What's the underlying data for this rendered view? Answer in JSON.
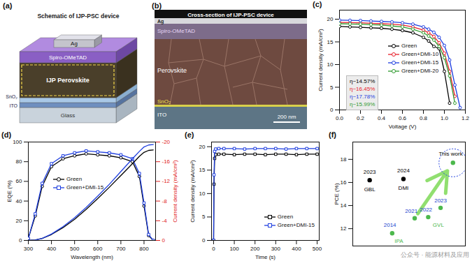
{
  "schematic": {
    "title": "(a)",
    "subtitle": "Schematic of IJP-PSC device",
    "layers": [
      "Ag",
      "Spiro-OMeTAD",
      "IJP Perovskite",
      "SnO₂",
      "ITO",
      "Glass"
    ]
  },
  "micrograph": {
    "title": "(b)",
    "subtitle": "Cross-section of IJP-PSC device",
    "layers": [
      "Ag",
      "Spiro-OMeTAD",
      "Perovskite",
      "SnO₂",
      "ITO"
    ],
    "scale_bar": "200 nm"
  },
  "chart_data": [
    {
      "type": "line",
      "title": "(c)",
      "xlabel": "Voltage (V)",
      "ylabel": "Current density (mA/cm²)",
      "x": [
        0,
        0.1,
        0.2,
        0.3,
        0.4,
        0.5,
        0.6,
        0.7,
        0.8,
        0.85,
        0.9,
        0.95,
        1.0,
        1.05,
        1.1,
        1.15
      ],
      "series": [
        {
          "name": "Green",
          "color": "#000000",
          "marker": "circle",
          "values": [
            18.4,
            18.3,
            18.2,
            18.1,
            18.0,
            17.8,
            17.5,
            17.0,
            16.0,
            15.2,
            14.0,
            13.5,
            8.5,
            1.5,
            null,
            null
          ]
        },
        {
          "name": "Green+DMI-10",
          "color": "#e8202a",
          "marker": "circle",
          "values": [
            19.3,
            19.25,
            19.2,
            19.1,
            19.0,
            18.9,
            18.7,
            18.3,
            17.6,
            17.0,
            16.2,
            14.8,
            12.5,
            8.5,
            3.0,
            null
          ]
        },
        {
          "name": "Green+DMI-15",
          "color": "#1f3fe0",
          "marker": "circle",
          "values": [
            19.8,
            19.75,
            19.7,
            19.6,
            19.5,
            19.4,
            19.2,
            18.9,
            18.3,
            17.8,
            17.1,
            16.0,
            14.2,
            11.0,
            5.5,
            0.5
          ]
        },
        {
          "name": "Green+DMI-20",
          "color": "#2e9a2e",
          "marker": "circle",
          "values": [
            19.0,
            18.95,
            18.9,
            18.8,
            18.7,
            18.5,
            18.3,
            17.8,
            17.0,
            16.3,
            15.4,
            14.0,
            11.5,
            7.5,
            1.5,
            null
          ]
        }
      ],
      "xlim": [
        0,
        1.2
      ],
      "xticks": [
        {
          "value": 0,
          "label": "0.0"
        },
        0.2,
        0.4,
        0.6,
        0.8,
        {
          "value": 1,
          "label": "1.0"
        },
        1.2
      ],
      "ylim": [
        0,
        22
      ],
      "yticks": [
        0,
        5,
        10,
        15,
        20
      ],
      "legend": "right",
      "annotations": [
        {
          "text": "η~14.57%",
          "color": "#000000"
        },
        {
          "text": "η~16.45%",
          "color": "#e8202a"
        },
        {
          "text": "η~17.78%",
          "color": "#1f3fe0"
        },
        {
          "text": "η~15.99%",
          "color": "#2e9a2e"
        }
      ]
    },
    {
      "type": "line",
      "title": "(d)",
      "xlabel": "Wavelength (nm)",
      "ylabel": "EQE (%)",
      "y2label": "Current density (mA/cm²)",
      "x": [
        300,
        330,
        360,
        400,
        450,
        500,
        550,
        600,
        650,
        700,
        750,
        780,
        800,
        820,
        840
      ],
      "series": [
        {
          "name": "Green",
          "color": "#000000",
          "marker": "circle",
          "values": [
            2,
            25,
            55,
            75,
            83,
            86,
            88,
            87,
            86,
            84,
            80,
            65,
            35,
            5,
            0
          ]
        },
        {
          "name": "Green+DMI-15",
          "color": "#1f3fe0",
          "marker": "square",
          "values": [
            2,
            27,
            58,
            78,
            86,
            89,
            91,
            90,
            89,
            87,
            83,
            68,
            38,
            6,
            0
          ]
        },
        {
          "name": "Green",
          "color": "#000000",
          "axis": "y2",
          "values": [
            0,
            -0.1,
            -0.4,
            -1.2,
            -2.6,
            -4.3,
            -6.3,
            -8.5,
            -10.8,
            -13.2,
            -15.6,
            -17.1,
            -17.9,
            -18.3,
            -18.4
          ]
        },
        {
          "name": "Green+DMI-15",
          "color": "#1f3fe0",
          "axis": "y2",
          "values": [
            0,
            -0.1,
            -0.4,
            -1.3,
            -2.8,
            -4.6,
            -6.7,
            -9.0,
            -11.4,
            -14.0,
            -16.6,
            -18.1,
            -19.0,
            -19.4,
            -19.5
          ]
        }
      ],
      "xlim": [
        300,
        850
      ],
      "xticks": [
        300,
        400,
        500,
        600,
        700,
        800
      ],
      "ylim": [
        0,
        100
      ],
      "yticks": [
        0,
        20,
        40,
        60,
        80,
        100
      ],
      "y2lim": [
        0,
        -20
      ],
      "y2ticks": [
        0,
        -4,
        -8,
        -12,
        -16,
        -20
      ],
      "legend": "left"
    },
    {
      "type": "line",
      "title": "(e)",
      "xlabel": "Time (s)",
      "ylabel": "Current density (mA/cm²)",
      "x": [
        0,
        2,
        5,
        10,
        25,
        50,
        100,
        150,
        200,
        250,
        300,
        350,
        400,
        450,
        500
      ],
      "series": [
        {
          "name": "Green",
          "color": "#000000",
          "marker": "square",
          "values": [
            0,
            12,
            17.5,
            18.3,
            18.4,
            18.4,
            18.3,
            18.4,
            18.4,
            18.3,
            18.4,
            18.4,
            18.3,
            18.4,
            18.4
          ]
        },
        {
          "name": "Green+DMI-15",
          "color": "#1f3fe0",
          "marker": "square",
          "values": [
            0,
            14,
            19.0,
            19.5,
            19.6,
            19.6,
            19.6,
            19.5,
            19.6,
            19.6,
            19.6,
            19.5,
            19.6,
            19.6,
            19.6
          ]
        }
      ],
      "xlim": [
        -10,
        510
      ],
      "xticks": [
        0,
        100,
        200,
        300,
        400,
        500
      ],
      "ylim": [
        0,
        21
      ],
      "yticks": [
        0,
        5,
        10,
        15,
        20
      ],
      "legend": "bottom-right"
    },
    {
      "type": "scatter",
      "title": "(f)",
      "ylabel": "PCE (%)",
      "x": [
        1.5,
        4.5,
        3.5,
        5.5,
        6.7,
        7.8,
        8.9
      ],
      "values": [
        16.2,
        16.3,
        11.6,
        12.9,
        13.0,
        13.8,
        17.7
      ],
      "colors": [
        "#000000",
        "#000000",
        "#4cb84c",
        "#4cb84c",
        "#4cb84c",
        "#4cb84c",
        "#4cb84c"
      ],
      "xlim": [
        0,
        10
      ],
      "ylim": [
        10.5,
        19.5
      ],
      "yticks": [
        12,
        14,
        16,
        18
      ],
      "tick_labels": "y",
      "annotations": [
        {
          "text": "2023",
          "x": 1.5,
          "y": 16.9,
          "color": "#000000"
        },
        {
          "text": "GBL",
          "x": 1.5,
          "y": 15.4,
          "color": "#000000"
        },
        {
          "text": "2024",
          "x": 4.5,
          "y": 17.0,
          "color": "#000000"
        },
        {
          "text": "DMI",
          "x": 4.5,
          "y": 15.5,
          "color": "#000000"
        },
        {
          "text": "2014",
          "x": 3.3,
          "y": 12.3,
          "color": "#1a3fcf"
        },
        {
          "text": "IPA",
          "x": 4.1,
          "y": 10.95,
          "color": "#4cb84c"
        },
        {
          "text": "2021",
          "x": 5.2,
          "y": 13.55,
          "color": "#1a3fcf"
        },
        {
          "text": "2022",
          "x": 6.5,
          "y": 13.65,
          "color": "#1a3fcf"
        },
        {
          "text": "2023",
          "x": 7.8,
          "y": 14.45,
          "color": "#1a3fcf"
        },
        {
          "text": "GVL",
          "x": 7.6,
          "y": 12.3,
          "color": "#4cb84c"
        },
        {
          "text": "This work",
          "x": 8.7,
          "y": 18.5,
          "color": "#000000"
        }
      ]
    }
  ],
  "watermark": "公众号 · 能源材料及应用"
}
